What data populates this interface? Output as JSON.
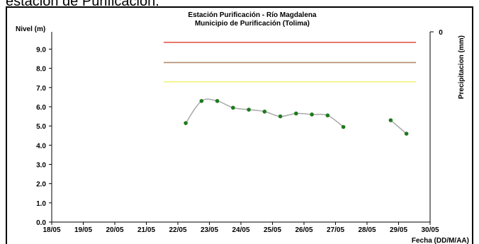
{
  "caption_text": "estación de Purificación.",
  "chart_data": {
    "type": "line",
    "title": "Estación Purificación - Río Magdalena",
    "subtitle": "Municipio de Purificación (Tolima)",
    "ylabel": "Nivel (m)",
    "xlabel": "Fecha (DD/M/AA)",
    "y2label": "Precipitacion (mm)",
    "y2_ticks": [
      "0"
    ],
    "ylim": [
      0,
      9.9
    ],
    "y_ticks": [
      "0.0",
      "1.0",
      "2.0",
      "3.0",
      "4.0",
      "5.0",
      "6.0",
      "7.0",
      "8.0",
      "9.0"
    ],
    "x_ticks": [
      "18/05",
      "19/05",
      "20/05",
      "21/05",
      "22/05",
      "23/05",
      "24/05",
      "25/05",
      "26/05",
      "27/05",
      "28/05",
      "29/05",
      "30/05"
    ],
    "xlim_days": [
      0,
      12
    ],
    "threshold_lines": [
      {
        "value": 9.35,
        "color": "#e05a50"
      },
      {
        "value": 8.3,
        "color": "#b08a6a"
      },
      {
        "value": 7.3,
        "color": "#f2f27a"
      }
    ],
    "threshold_span_days": [
      3.55,
      11.55
    ],
    "series": [
      {
        "line_color": "#a9a9a9",
        "marker_color": "#1e7a1e",
        "segments": [
          [
            {
              "x": "22/05 06h",
              "xd": 4.25,
              "y": 5.15
            },
            {
              "x": "22/05 18h",
              "xd": 4.75,
              "y": 6.3
            },
            {
              "x": "23/05 06h",
              "xd": 5.25,
              "y": 6.3
            },
            {
              "x": "23/05 18h",
              "xd": 5.75,
              "y": 5.95
            },
            {
              "x": "24/05 06h",
              "xd": 6.25,
              "y": 5.85
            },
            {
              "x": "24/05 18h",
              "xd": 6.75,
              "y": 5.75
            },
            {
              "x": "25/05 06h",
              "xd": 7.25,
              "y": 5.5
            },
            {
              "x": "25/05 18h",
              "xd": 7.75,
              "y": 5.65
            },
            {
              "x": "26/05 06h",
              "xd": 8.25,
              "y": 5.6
            },
            {
              "x": "26/05 18h",
              "xd": 8.75,
              "y": 5.55
            },
            {
              "x": "27/05 06h",
              "xd": 9.25,
              "y": 4.95
            }
          ],
          [
            {
              "x": "28/05 18h",
              "xd": 10.75,
              "y": 5.3
            },
            {
              "x": "29/05 06h",
              "xd": 11.25,
              "y": 4.6
            }
          ]
        ]
      }
    ]
  }
}
